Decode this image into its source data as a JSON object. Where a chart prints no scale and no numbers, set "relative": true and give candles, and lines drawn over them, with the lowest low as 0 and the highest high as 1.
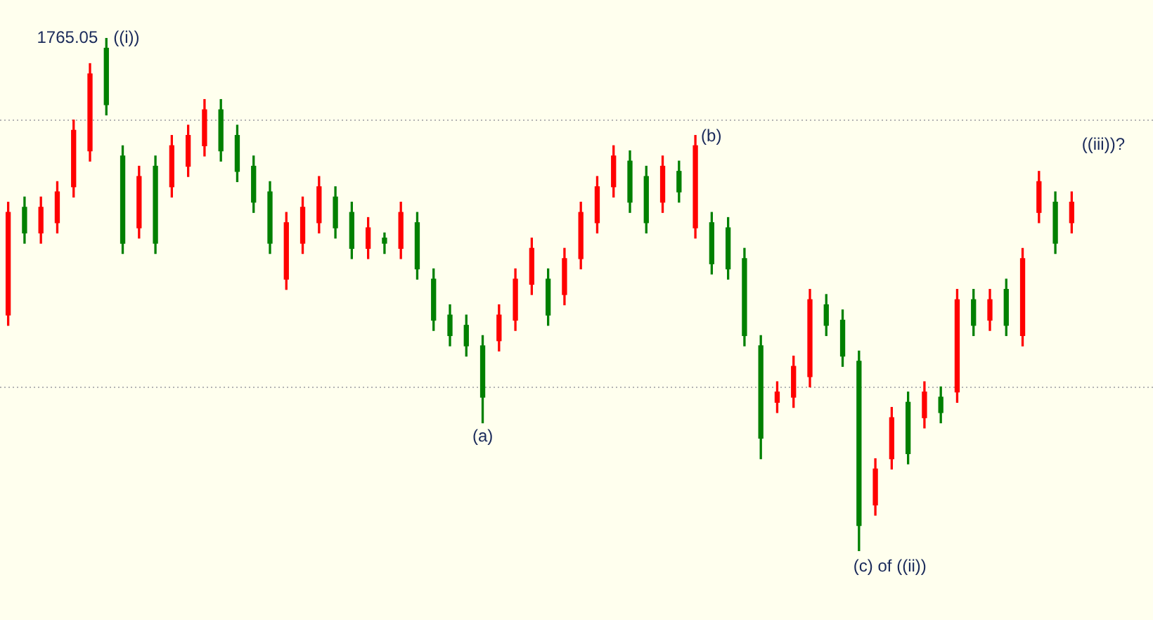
{
  "chart_data": {
    "type": "candlestick",
    "relative": true,
    "categories": [
      null,
      null,
      null,
      null,
      null,
      null,
      null,
      null,
      null,
      null,
      null,
      null,
      null,
      null,
      null,
      null,
      null,
      null,
      null,
      null,
      null,
      null,
      null,
      null,
      null,
      null,
      null,
      null,
      null,
      null,
      null,
      null,
      null,
      null,
      null,
      null,
      null,
      null,
      null,
      null,
      null,
      null,
      null,
      null,
      null,
      null,
      null,
      null,
      null,
      null,
      null,
      null,
      null,
      null,
      null,
      null,
      null,
      null,
      null,
      null,
      null,
      null,
      null,
      null,
      null,
      null
    ],
    "ohlc": [
      [
        0.46,
        0.68,
        0.44,
        0.66
      ],
      [
        0.67,
        0.69,
        0.6,
        0.62
      ],
      [
        0.62,
        0.69,
        0.6,
        0.67
      ],
      [
        0.64,
        0.72,
        0.62,
        0.7
      ],
      [
        0.71,
        0.84,
        0.69,
        0.82
      ],
      [
        0.78,
        0.95,
        0.76,
        0.93
      ],
      [
        0.98,
        1.0,
        0.85,
        0.87
      ],
      [
        0.77,
        0.79,
        0.58,
        0.6
      ],
      [
        0.63,
        0.75,
        0.61,
        0.73
      ],
      [
        0.75,
        0.77,
        0.58,
        0.6
      ],
      [
        0.71,
        0.81,
        0.69,
        0.79
      ],
      [
        0.75,
        0.83,
        0.73,
        0.81
      ],
      [
        0.79,
        0.88,
        0.77,
        0.86
      ],
      [
        0.86,
        0.88,
        0.76,
        0.78
      ],
      [
        0.81,
        0.83,
        0.72,
        0.74
      ],
      [
        0.75,
        0.77,
        0.66,
        0.68
      ],
      [
        0.7,
        0.72,
        0.58,
        0.6
      ],
      [
        0.53,
        0.66,
        0.51,
        0.64
      ],
      [
        0.6,
        0.69,
        0.58,
        0.67
      ],
      [
        0.64,
        0.73,
        0.62,
        0.71
      ],
      [
        0.69,
        0.71,
        0.61,
        0.63
      ],
      [
        0.66,
        0.68,
        0.57,
        0.59
      ],
      [
        0.59,
        0.65,
        0.57,
        0.63
      ],
      [
        0.61,
        0.62,
        0.58,
        0.6
      ],
      [
        0.59,
        0.68,
        0.57,
        0.66
      ],
      [
        0.64,
        0.66,
        0.53,
        0.55
      ],
      [
        0.53,
        0.55,
        0.43,
        0.45
      ],
      [
        0.46,
        0.48,
        0.4,
        0.42
      ],
      [
        0.44,
        0.46,
        0.38,
        0.4
      ],
      [
        0.4,
        0.42,
        0.25,
        0.3
      ],
      [
        0.41,
        0.48,
        0.39,
        0.46
      ],
      [
        0.45,
        0.55,
        0.43,
        0.53
      ],
      [
        0.52,
        0.61,
        0.5,
        0.59
      ],
      [
        0.53,
        0.55,
        0.44,
        0.46
      ],
      [
        0.5,
        0.59,
        0.48,
        0.57
      ],
      [
        0.57,
        0.68,
        0.55,
        0.66
      ],
      [
        0.64,
        0.73,
        0.62,
        0.71
      ],
      [
        0.71,
        0.79,
        0.69,
        0.77
      ],
      [
        0.76,
        0.78,
        0.66,
        0.68
      ],
      [
        0.73,
        0.75,
        0.62,
        0.64
      ],
      [
        0.68,
        0.77,
        0.66,
        0.75
      ],
      [
        0.74,
        0.76,
        0.68,
        0.7
      ],
      [
        0.63,
        0.81,
        0.61,
        0.79
      ],
      [
        0.64,
        0.66,
        0.54,
        0.56
      ],
      [
        0.63,
        0.65,
        0.53,
        0.55
      ],
      [
        0.57,
        0.59,
        0.4,
        0.42
      ],
      [
        0.4,
        0.42,
        0.18,
        0.22
      ],
      [
        0.29,
        0.33,
        0.27,
        0.31
      ],
      [
        0.3,
        0.38,
        0.28,
        0.36
      ],
      [
        0.34,
        0.51,
        0.32,
        0.49
      ],
      [
        0.48,
        0.5,
        0.42,
        0.44
      ],
      [
        0.45,
        0.47,
        0.36,
        0.38
      ],
      [
        0.37,
        0.39,
        0.0,
        0.05
      ],
      [
        0.09,
        0.18,
        0.07,
        0.16
      ],
      [
        0.18,
        0.28,
        0.16,
        0.26
      ],
      [
        0.29,
        0.31,
        0.17,
        0.19
      ],
      [
        0.26,
        0.33,
        0.24,
        0.31
      ],
      [
        0.3,
        0.32,
        0.25,
        0.27
      ],
      [
        0.31,
        0.51,
        0.29,
        0.49
      ],
      [
        0.49,
        0.51,
        0.42,
        0.44
      ],
      [
        0.45,
        0.51,
        0.43,
        0.49
      ],
      [
        0.51,
        0.53,
        0.42,
        0.44
      ],
      [
        0.42,
        0.59,
        0.4,
        0.57
      ],
      [
        0.66,
        0.74,
        0.64,
        0.72
      ],
      [
        0.68,
        0.7,
        0.58,
        0.6
      ],
      [
        0.64,
        0.7,
        0.62,
        0.68
      ]
    ],
    "colors": [
      "#ff0000",
      "#008000",
      "#ff0000",
      "#ff0000",
      "#ff0000",
      "#ff0000",
      "#008000",
      "#008000",
      "#ff0000",
      "#008000",
      "#ff0000",
      "#ff0000",
      "#ff0000",
      "#008000",
      "#008000",
      "#008000",
      "#008000",
      "#ff0000",
      "#ff0000",
      "#ff0000",
      "#008000",
      "#008000",
      "#ff0000",
      "#008000",
      "#ff0000",
      "#008000",
      "#008000",
      "#008000",
      "#008000",
      "#008000",
      "#ff0000",
      "#ff0000",
      "#ff0000",
      "#008000",
      "#ff0000",
      "#ff0000",
      "#ff0000",
      "#ff0000",
      "#008000",
      "#008000",
      "#ff0000",
      "#008000",
      "#ff0000",
      "#008000",
      "#008000",
      "#008000",
      "#008000",
      "#ff0000",
      "#ff0000",
      "#ff0000",
      "#008000",
      "#008000",
      "#008000",
      "#ff0000",
      "#ff0000",
      "#008000",
      "#ff0000",
      "#008000",
      "#ff0000",
      "#008000",
      "#ff0000",
      "#008000",
      "#ff0000",
      "#ff0000",
      "#008000",
      "#ff0000"
    ],
    "ref_lines": [
      {
        "axis": "y",
        "value": 0.84,
        "color": "#b4b4b4",
        "line_style": "dotted"
      },
      {
        "axis": "y",
        "value": 0.32,
        "color": "#b4b4b4",
        "line_style": "dotted"
      }
    ],
    "annotations": [
      "1765.05",
      "((i))",
      "(a)",
      "(b)",
      "(c) of ((ii))",
      "((iii))?"
    ]
  }
}
